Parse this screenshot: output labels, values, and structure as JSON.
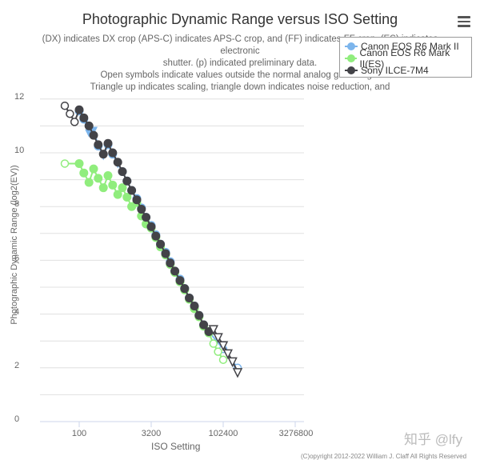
{
  "header": {
    "title": "Photographic Dynamic Range versus ISO Setting",
    "subtitle_lines": [
      "(DX) indicates DX crop (APS-C) indicates APS-C crop, and (FF) indicates FF crop. (ES) indicates electronic",
      "shutter. (p) indicated preliminary data.",
      "Open symbols indicate values outside the normal analog gain range.",
      "Triangle up indicates scaling, triangle down indicates noise reduction, and"
    ],
    "menu_icon": "hamburger-menu-icon"
  },
  "legend": {
    "items": [
      {
        "label": "Canon EOS R6 Mark II",
        "color": "#7cb5ec"
      },
      {
        "label": "Canon EOS R6 Mark II(ES)",
        "color": "#90ed7d"
      },
      {
        "label": "Sony ILCE-7M4",
        "color": "#434348"
      }
    ]
  },
  "axes": {
    "xlabel": "ISO Setting",
    "ylabel": "Photographic Dynamic Range (log2(EV))",
    "xticks": [
      "100",
      "3200",
      "102400",
      "3276800"
    ],
    "yticks": [
      "0",
      "2",
      "4",
      "6",
      "8",
      "10",
      "12"
    ]
  },
  "footer": {
    "watermark": "知乎 @lfy",
    "copyright": "(C)opyright 2012-2022 William J. Claff All Rights Reserved"
  },
  "chart_data": {
    "type": "line",
    "title": "Photographic Dynamic Range versus ISO Setting",
    "xlabel": "ISO Setting",
    "ylabel": "Photographic Dynamic Range (log2(EV))",
    "x_scale": "log2",
    "xlim": [
      50,
      3276800
    ],
    "ylim": [
      0,
      12
    ],
    "grid": true,
    "legend_position": "top-right",
    "series": [
      {
        "name": "Canon EOS R6 Mark II",
        "color": "#7cb5ec",
        "points": [
          {
            "iso": 100,
            "dr": 11.55,
            "sym": "circle"
          },
          {
            "iso": 125,
            "dr": 11.25,
            "sym": "circle"
          },
          {
            "iso": 160,
            "dr": 10.75,
            "sym": "tri-down"
          },
          {
            "iso": 200,
            "dr": 10.85,
            "sym": "tri-down"
          },
          {
            "iso": 250,
            "dr": 10.25,
            "sym": "circle"
          },
          {
            "iso": 320,
            "dr": 9.9,
            "sym": "tri-down"
          },
          {
            "iso": 400,
            "dr": 10.3,
            "sym": "circle"
          },
          {
            "iso": 500,
            "dr": 9.95,
            "sym": "circle"
          },
          {
            "iso": 640,
            "dr": 9.6,
            "sym": "tri-down"
          },
          {
            "iso": 800,
            "dr": 9.3,
            "sym": "circle"
          },
          {
            "iso": 1000,
            "dr": 8.95,
            "sym": "circle"
          },
          {
            "iso": 1250,
            "dr": 8.6,
            "sym": "circle"
          },
          {
            "iso": 1600,
            "dr": 8.3,
            "sym": "circle"
          },
          {
            "iso": 2000,
            "dr": 7.95,
            "sym": "circle"
          },
          {
            "iso": 2500,
            "dr": 7.6,
            "sym": "circle"
          },
          {
            "iso": 3200,
            "dr": 7.3,
            "sym": "circle"
          },
          {
            "iso": 4000,
            "dr": 6.95,
            "sym": "circle"
          },
          {
            "iso": 5000,
            "dr": 6.6,
            "sym": "circle"
          },
          {
            "iso": 6400,
            "dr": 6.3,
            "sym": "circle"
          },
          {
            "iso": 8000,
            "dr": 5.95,
            "sym": "circle"
          },
          {
            "iso": 10000,
            "dr": 5.6,
            "sym": "circle"
          },
          {
            "iso": 12800,
            "dr": 5.3,
            "sym": "circle"
          },
          {
            "iso": 16000,
            "dr": 4.95,
            "sym": "circle"
          },
          {
            "iso": 20000,
            "dr": 4.6,
            "sym": "circle"
          },
          {
            "iso": 25600,
            "dr": 4.3,
            "sym": "circle"
          },
          {
            "iso": 32000,
            "dr": 3.95,
            "sym": "circle"
          },
          {
            "iso": 40000,
            "dr": 3.6,
            "sym": "circle"
          },
          {
            "iso": 51200,
            "dr": 3.35,
            "sym": "circle"
          },
          {
            "iso": 102400,
            "dr": 2.7,
            "sym": "open-circle"
          },
          {
            "iso": 204800,
            "dr": 2.0,
            "sym": "open-circle"
          }
        ]
      },
      {
        "name": "Canon EOS R6 Mark II(ES)",
        "color": "#90ed7d",
        "points": [
          {
            "iso": 50,
            "dr": 9.6,
            "sym": "open-circle"
          },
          {
            "iso": 100,
            "dr": 9.6,
            "sym": "circle"
          },
          {
            "iso": 125,
            "dr": 9.25,
            "sym": "circle"
          },
          {
            "iso": 160,
            "dr": 8.9,
            "sym": "circle"
          },
          {
            "iso": 200,
            "dr": 9.4,
            "sym": "circle"
          },
          {
            "iso": 250,
            "dr": 9.05,
            "sym": "circle"
          },
          {
            "iso": 320,
            "dr": 8.7,
            "sym": "circle"
          },
          {
            "iso": 400,
            "dr": 9.15,
            "sym": "circle"
          },
          {
            "iso": 500,
            "dr": 8.8,
            "sym": "circle"
          },
          {
            "iso": 640,
            "dr": 8.45,
            "sym": "circle"
          },
          {
            "iso": 800,
            "dr": 8.7,
            "sym": "circle"
          },
          {
            "iso": 1000,
            "dr": 8.35,
            "sym": "circle"
          },
          {
            "iso": 1250,
            "dr": 8.0,
            "sym": "circle"
          },
          {
            "iso": 1600,
            "dr": 8.15,
            "sym": "circle"
          },
          {
            "iso": 2000,
            "dr": 7.65,
            "sym": "circle"
          },
          {
            "iso": 2500,
            "dr": 7.35,
            "sym": "circle"
          },
          {
            "iso": 3200,
            "dr": 7.2,
            "sym": "circle"
          },
          {
            "iso": 4000,
            "dr": 6.85,
            "sym": "circle"
          },
          {
            "iso": 5000,
            "dr": 6.5,
            "sym": "circle"
          },
          {
            "iso": 6400,
            "dr": 6.2,
            "sym": "circle"
          },
          {
            "iso": 8000,
            "dr": 5.85,
            "sym": "circle"
          },
          {
            "iso": 10000,
            "dr": 5.55,
            "sym": "circle"
          },
          {
            "iso": 12800,
            "dr": 5.2,
            "sym": "circle"
          },
          {
            "iso": 16000,
            "dr": 4.9,
            "sym": "circle"
          },
          {
            "iso": 20000,
            "dr": 4.55,
            "sym": "circle"
          },
          {
            "iso": 25600,
            "dr": 4.2,
            "sym": "circle"
          },
          {
            "iso": 32000,
            "dr": 3.9,
            "sym": "circle"
          },
          {
            "iso": 40000,
            "dr": 3.55,
            "sym": "circle"
          },
          {
            "iso": 51200,
            "dr": 3.3,
            "sym": "circle"
          },
          {
            "iso": 64000,
            "dr": 2.9,
            "sym": "open-circle"
          },
          {
            "iso": 80000,
            "dr": 2.6,
            "sym": "open-circle"
          },
          {
            "iso": 102400,
            "dr": 2.3,
            "sym": "open-circle"
          }
        ]
      },
      {
        "name": "Sony ILCE-7M4",
        "color": "#434348",
        "points": [
          {
            "iso": 50,
            "dr": 11.75,
            "sym": "open-circle"
          },
          {
            "iso": 64,
            "dr": 11.45,
            "sym": "open-circle"
          },
          {
            "iso": 80,
            "dr": 11.15,
            "sym": "open-circle"
          },
          {
            "iso": 100,
            "dr": 11.6,
            "sym": "circle"
          },
          {
            "iso": 125,
            "dr": 11.3,
            "sym": "circle"
          },
          {
            "iso": 160,
            "dr": 11.0,
            "sym": "circle"
          },
          {
            "iso": 200,
            "dr": 10.65,
            "sym": "circle"
          },
          {
            "iso": 250,
            "dr": 10.3,
            "sym": "circle"
          },
          {
            "iso": 320,
            "dr": 9.95,
            "sym": "circle"
          },
          {
            "iso": 400,
            "dr": 10.35,
            "sym": "circle"
          },
          {
            "iso": 500,
            "dr": 10.0,
            "sym": "circle"
          },
          {
            "iso": 640,
            "dr": 9.65,
            "sym": "circle"
          },
          {
            "iso": 800,
            "dr": 9.3,
            "sym": "circle"
          },
          {
            "iso": 1000,
            "dr": 8.95,
            "sym": "circle"
          },
          {
            "iso": 1250,
            "dr": 8.6,
            "sym": "circle"
          },
          {
            "iso": 1600,
            "dr": 8.25,
            "sym": "circle"
          },
          {
            "iso": 2000,
            "dr": 7.9,
            "sym": "circle"
          },
          {
            "iso": 2500,
            "dr": 7.6,
            "sym": "circle"
          },
          {
            "iso": 3200,
            "dr": 7.25,
            "sym": "circle"
          },
          {
            "iso": 4000,
            "dr": 6.9,
            "sym": "circle"
          },
          {
            "iso": 5000,
            "dr": 6.6,
            "sym": "circle"
          },
          {
            "iso": 6400,
            "dr": 6.25,
            "sym": "circle"
          },
          {
            "iso": 8000,
            "dr": 5.9,
            "sym": "circle"
          },
          {
            "iso": 10000,
            "dr": 5.6,
            "sym": "circle"
          },
          {
            "iso": 12800,
            "dr": 5.25,
            "sym": "circle"
          },
          {
            "iso": 16000,
            "dr": 4.95,
            "sym": "circle"
          },
          {
            "iso": 20000,
            "dr": 4.6,
            "sym": "circle"
          },
          {
            "iso": 25600,
            "dr": 4.3,
            "sym": "circle"
          },
          {
            "iso": 32000,
            "dr": 3.95,
            "sym": "circle"
          },
          {
            "iso": 40000,
            "dr": 3.6,
            "sym": "circle"
          },
          {
            "iso": 51200,
            "dr": 3.35,
            "sym": "circle"
          },
          {
            "iso": 64000,
            "dr": 3.45,
            "sym": "open-tri-down"
          },
          {
            "iso": 80000,
            "dr": 3.15,
            "sym": "open-tri-down"
          },
          {
            "iso": 102400,
            "dr": 2.85,
            "sym": "open-tri-down"
          },
          {
            "iso": 128000,
            "dr": 2.55,
            "sym": "open-tri-down"
          },
          {
            "iso": 160000,
            "dr": 2.25,
            "sym": "open-tri-down"
          },
          {
            "iso": 204800,
            "dr": 1.85,
            "sym": "open-tri-down"
          }
        ]
      }
    ]
  }
}
